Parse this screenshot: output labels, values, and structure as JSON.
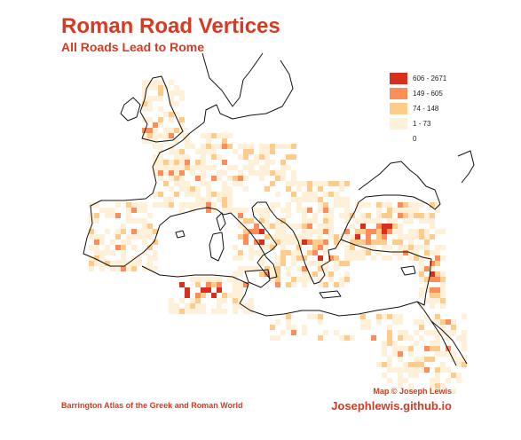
{
  "header": {
    "title": "Roman Road Vertices",
    "subtitle": "All Roads Lead to Rome"
  },
  "legend": {
    "items": [
      {
        "label": "606 - 2671",
        "color": "#d7301f"
      },
      {
        "label": "149 - 605",
        "color": "#fc8d59"
      },
      {
        "label": "74 - 148",
        "color": "#fdcc8a"
      },
      {
        "label": "1 - 73",
        "color": "#fef0d9"
      },
      {
        "label": "0",
        "color": "#ffffff"
      }
    ]
  },
  "footer": {
    "source": "Barrington Atlas of the Greek and Roman World",
    "map_credit": "Map © Joseph Lewis",
    "website": "Josephlewis.github.io"
  }
}
